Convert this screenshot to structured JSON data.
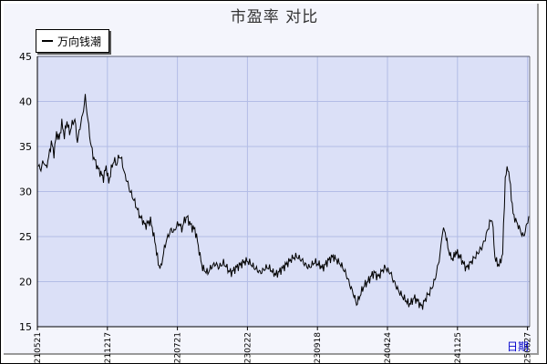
{
  "title": "市盈率  对比",
  "x_axis_label": "日期",
  "colors": {
    "plot_bg": "#dbe0f7",
    "grid": "#b3bde6",
    "line": "#000000"
  },
  "chart_data": {
    "type": "line",
    "title": "市盈率  对比",
    "xlabel": "日期",
    "ylabel": "",
    "ylim": [
      15,
      45
    ],
    "yticks": [
      15,
      20,
      25,
      30,
      35,
      40,
      45
    ],
    "xticks": [
      "20210521",
      "20211217",
      "20220721",
      "20230222",
      "20230918",
      "20240424",
      "20241125",
      "20250627"
    ],
    "grid": true,
    "legend_position": "top-left",
    "series": [
      {
        "name": "万向钱潮",
        "x_start": "20210521",
        "x_end": "20250627",
        "values": [
          32.8,
          32.5,
          33.4,
          32.6,
          33.8,
          35.5,
          34.2,
          36.5,
          35.8,
          37.6,
          36.2,
          37.8,
          36.5,
          37.5,
          38.0,
          35.5,
          37.2,
          38.5,
          40.5,
          38.0,
          35.5,
          34.0,
          33.2,
          32.5,
          32.0,
          31.5,
          32.8,
          31.0,
          32.5,
          33.5,
          33.0,
          34.0,
          33.5,
          32.0,
          31.2,
          30.2,
          29.5,
          28.8,
          28.0,
          27.2,
          26.8,
          26.2,
          26.5,
          26.8,
          25.5,
          24.0,
          22.0,
          21.5,
          23.2,
          24.5,
          25.2,
          25.8,
          25.5,
          26.2,
          26.5,
          25.8,
          26.8,
          27.2,
          26.5,
          26.0,
          25.8,
          24.5,
          22.8,
          21.5,
          21.2,
          21.0,
          21.5,
          21.8,
          22.0,
          21.6,
          21.8,
          22.1,
          21.7,
          21.2,
          21.0,
          21.3,
          21.6,
          21.8,
          22.0,
          22.2,
          22.3,
          22.1,
          21.8,
          21.5,
          21.3,
          21.0,
          21.2,
          21.5,
          21.6,
          21.4,
          21.0,
          20.8,
          21.0,
          21.3,
          21.6,
          21.9,
          22.2,
          22.5,
          22.7,
          22.8,
          22.6,
          22.4,
          22.0,
          21.7,
          21.6,
          21.9,
          22.2,
          22.0,
          21.8,
          21.5,
          21.9,
          22.3,
          22.6,
          22.8,
          22.5,
          22.2,
          21.9,
          21.4,
          20.8,
          20.0,
          19.2,
          18.5,
          17.5,
          18.2,
          19.0,
          19.6,
          19.9,
          20.3,
          20.8,
          21.0,
          20.5,
          20.8,
          21.3,
          21.6,
          21.2,
          21.0,
          20.2,
          19.6,
          19.0,
          18.6,
          18.2,
          17.9,
          17.5,
          17.7,
          18.2,
          18.0,
          17.6,
          17.2,
          17.8,
          18.4,
          18.8,
          19.4,
          20.2,
          21.5,
          23.0,
          25.8,
          25.5,
          23.8,
          22.8,
          22.5,
          23.3,
          23.0,
          22.6,
          22.0,
          21.5,
          21.8,
          22.2,
          22.6,
          23.0,
          23.4,
          23.8,
          24.5,
          25.5,
          26.5,
          27.0,
          22.8,
          21.9,
          22.0,
          23.2,
          31.5,
          32.8,
          30.5,
          27.5,
          26.8,
          26.2,
          25.5,
          25.0,
          26.0,
          27.2
        ]
      }
    ]
  }
}
